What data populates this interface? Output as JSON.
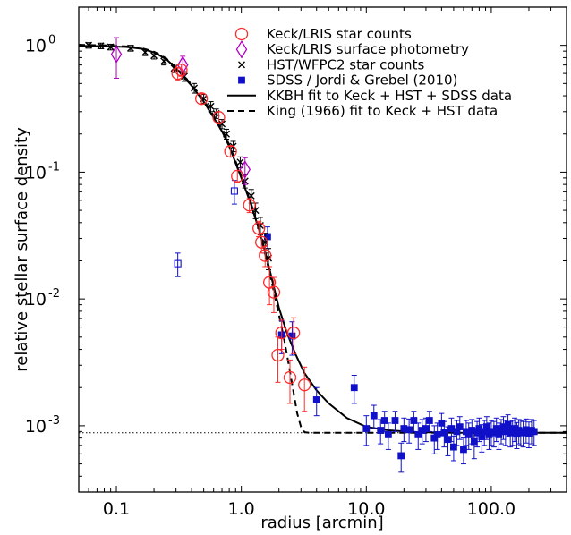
{
  "chart_data": {
    "type": "scatter",
    "xlabel": "radius [arcmin]",
    "ylabel": "relative stellar surface density",
    "xscale": "log",
    "yscale": "log",
    "xlim": [
      0.05,
      400
    ],
    "ylim": [
      0.0003,
      2.0
    ],
    "x_tick_labels": [
      {
        "value": 0.1,
        "label": "0.1"
      },
      {
        "value": 1,
        "label": "1.0"
      },
      {
        "value": 10,
        "label": "10.0"
      },
      {
        "value": 100,
        "label": "100.0"
      }
    ],
    "y_tick_labels": [
      {
        "value": 1,
        "base": "10",
        "exp": "0"
      },
      {
        "value": 0.1,
        "base": "10",
        "exp": "-1"
      },
      {
        "value": 0.01,
        "base": "10",
        "exp": "-2"
      },
      {
        "value": 0.001,
        "base": "10",
        "exp": "-3"
      }
    ],
    "background_level": 0.00088,
    "legend_position": "top-right",
    "colors": {
      "keck_counts": "#ff2a2a",
      "keck_phot": "#b000c0",
      "hst": "#000000",
      "sdss": "#1010c8"
    },
    "series": [
      {
        "name": "Keck/LRIS star counts",
        "marker": "open-circle",
        "points": [
          [
            0.31,
            0.6,
            0.07
          ],
          [
            0.33,
            0.64,
            0.07
          ],
          [
            0.48,
            0.38,
            0.035
          ],
          [
            0.66,
            0.27,
            0.03
          ],
          [
            0.82,
            0.146,
            0.014
          ],
          [
            0.93,
            0.093,
            0.01
          ],
          [
            1.16,
            0.055,
            0.007
          ],
          [
            1.38,
            0.036,
            0.005
          ],
          [
            1.45,
            0.028,
            0.005
          ],
          [
            1.55,
            0.022,
            0.004
          ],
          [
            1.68,
            0.0135,
            0.0045
          ],
          [
            1.82,
            0.0113,
            0.0035
          ],
          [
            1.96,
            0.0036,
            0.0014
          ],
          [
            2.1,
            0.0054,
            0.0014
          ],
          [
            2.45,
            0.0024,
            0.0009
          ],
          [
            2.62,
            0.0054,
            0.0017
          ],
          [
            3.2,
            0.0021,
            0.0008
          ]
        ]
      },
      {
        "name": "Keck/LRIS surface photometry",
        "marker": "open-diamond",
        "points": [
          [
            0.1,
            0.85,
            0.3
          ],
          [
            0.34,
            0.7,
            0.12
          ],
          [
            1.07,
            0.105,
            0.025
          ]
        ]
      },
      {
        "name": "HST/WFPC2 star counts",
        "marker": "x",
        "points": [
          [
            0.06,
            1.0,
            0.05
          ],
          [
            0.075,
            0.99,
            0.05
          ],
          [
            0.09,
            0.97,
            0.05
          ],
          [
            0.13,
            0.95,
            0.05
          ],
          [
            0.17,
            0.88,
            0.05
          ],
          [
            0.2,
            0.83,
            0.05
          ],
          [
            0.24,
            0.75,
            0.05
          ],
          [
            0.29,
            0.66,
            0.05
          ],
          [
            0.35,
            0.57,
            0.05
          ],
          [
            0.42,
            0.46,
            0.04
          ],
          [
            0.5,
            0.38,
            0.03
          ],
          [
            0.57,
            0.33,
            0.03
          ],
          [
            0.63,
            0.29,
            0.025
          ],
          [
            0.7,
            0.24,
            0.02
          ],
          [
            0.76,
            0.2,
            0.018
          ],
          [
            0.86,
            0.16,
            0.015
          ],
          [
            0.98,
            0.12,
            0.012
          ],
          [
            1.07,
            0.085,
            0.01
          ],
          [
            1.2,
            0.065,
            0.008
          ],
          [
            1.3,
            0.05,
            0.007
          ],
          [
            1.42,
            0.038,
            0.006
          ],
          [
            1.55,
            0.028,
            0.005
          ],
          [
            1.65,
            0.021,
            0.004
          ]
        ]
      },
      {
        "name": "SDSS / Jordi & Grebel (2010)",
        "marker": "filled-square",
        "points": [
          [
            0.31,
            0.019,
            0.004
          ],
          [
            0.88,
            0.071,
            0.015
          ],
          [
            1.62,
            0.031,
            0.006
          ],
          [
            2.1,
            0.0052,
            0.0015
          ],
          [
            2.55,
            0.0051,
            0.0015
          ],
          [
            4.0,
            0.0016,
            0.0004
          ],
          [
            8.0,
            0.002,
            0.0005
          ],
          [
            10.0,
            0.00095,
            0.00025
          ],
          [
            11.5,
            0.0012,
            0.00025
          ],
          [
            13,
            0.00092,
            0.0002
          ],
          [
            14,
            0.0011,
            0.0002
          ],
          [
            15,
            0.00085,
            0.0002
          ],
          [
            17,
            0.0011,
            0.0002
          ],
          [
            19,
            0.00058,
            0.00015
          ],
          [
            20,
            0.00095,
            0.0002
          ],
          [
            22,
            0.00093,
            0.0002
          ],
          [
            24,
            0.0011,
            0.0002
          ],
          [
            26,
            0.00085,
            0.0002
          ],
          [
            28,
            0.00092,
            0.0002
          ],
          [
            30,
            0.00095,
            0.0002
          ],
          [
            32,
            0.0011,
            0.0002
          ],
          [
            35,
            0.0008,
            0.0002
          ],
          [
            37,
            0.00085,
            0.0002
          ],
          [
            40,
            0.00105,
            0.0002
          ],
          [
            42,
            0.00088,
            0.0002
          ],
          [
            45,
            0.00078,
            0.0002
          ],
          [
            48,
            0.00095,
            0.0002
          ],
          [
            50,
            0.00068,
            0.00015
          ],
          [
            53,
            0.0009,
            0.0002
          ],
          [
            56,
            0.00098,
            0.0002
          ],
          [
            60,
            0.00065,
            0.00015
          ],
          [
            63,
            0.0009,
            0.0002
          ],
          [
            66,
            0.00085,
            0.0002
          ],
          [
            70,
            0.00092,
            0.0002
          ],
          [
            73,
            0.00075,
            0.0002
          ],
          [
            77,
            0.00088,
            0.0002
          ],
          [
            80,
            0.00095,
            0.0002
          ],
          [
            84,
            0.00082,
            0.0002
          ],
          [
            88,
            0.0009,
            0.0002
          ],
          [
            92,
            0.00098,
            0.0002
          ],
          [
            96,
            0.00085,
            0.0002
          ],
          [
            100,
            0.0009,
            0.0002
          ],
          [
            105,
            0.00088,
            0.0002
          ],
          [
            110,
            0.00095,
            0.0002
          ],
          [
            115,
            0.00085,
            0.0002
          ],
          [
            120,
            0.00092,
            0.0002
          ],
          [
            125,
            0.00098,
            0.0002
          ],
          [
            130,
            0.0009,
            0.0002
          ],
          [
            136,
            0.00102,
            0.0002
          ],
          [
            142,
            0.00088,
            0.0002
          ],
          [
            148,
            0.0009,
            0.0002
          ],
          [
            154,
            0.00095,
            0.0002
          ],
          [
            160,
            0.00086,
            0.0002
          ],
          [
            166,
            0.00092,
            0.0002
          ],
          [
            172,
            0.0009,
            0.0002
          ],
          [
            180,
            0.00088,
            0.0002
          ],
          [
            190,
            0.00093,
            0.0002
          ],
          [
            200,
            0.00087,
            0.0002
          ],
          [
            210,
            0.00092,
            0.0002
          ],
          [
            220,
            0.0009,
            0.0002
          ]
        ]
      }
    ],
    "fits": [
      {
        "name": "KKBH fit to Keck + HST + SDSS data",
        "style": "solid",
        "points": [
          [
            0.05,
            0.99
          ],
          [
            0.08,
            0.985
          ],
          [
            0.12,
            0.97
          ],
          [
            0.16,
            0.94
          ],
          [
            0.2,
            0.88
          ],
          [
            0.25,
            0.78
          ],
          [
            0.3,
            0.66
          ],
          [
            0.4,
            0.48
          ],
          [
            0.5,
            0.36
          ],
          [
            0.6,
            0.27
          ],
          [
            0.7,
            0.21
          ],
          [
            0.8,
            0.16
          ],
          [
            1.0,
            0.09
          ],
          [
            1.2,
            0.055
          ],
          [
            1.4,
            0.034
          ],
          [
            1.6,
            0.021
          ],
          [
            1.8,
            0.013
          ],
          [
            2.0,
            0.0085
          ],
          [
            2.3,
            0.0055
          ],
          [
            2.7,
            0.0037
          ],
          [
            3.2,
            0.0026
          ],
          [
            4.0,
            0.0019
          ],
          [
            5.0,
            0.0015
          ],
          [
            7.0,
            0.00115
          ],
          [
            10,
            0.00098
          ],
          [
            15,
            0.00092
          ],
          [
            25,
            0.00089
          ],
          [
            50,
            0.00088
          ],
          [
            400,
            0.00088
          ]
        ]
      },
      {
        "name": "King (1966) fit to Keck + HST data",
        "style": "dashed",
        "points": [
          [
            0.05,
            1.01
          ],
          [
            0.08,
            1.0
          ],
          [
            0.12,
            0.98
          ],
          [
            0.16,
            0.95
          ],
          [
            0.2,
            0.89
          ],
          [
            0.25,
            0.79
          ],
          [
            0.3,
            0.67
          ],
          [
            0.4,
            0.49
          ],
          [
            0.5,
            0.37
          ],
          [
            0.6,
            0.28
          ],
          [
            0.7,
            0.215
          ],
          [
            0.8,
            0.165
          ],
          [
            1.0,
            0.093
          ],
          [
            1.2,
            0.056
          ],
          [
            1.4,
            0.034
          ],
          [
            1.6,
            0.02
          ],
          [
            1.8,
            0.012
          ],
          [
            2.0,
            0.0075
          ],
          [
            2.2,
            0.0048
          ],
          [
            2.4,
            0.003
          ],
          [
            2.6,
            0.0019
          ],
          [
            2.8,
            0.00125
          ],
          [
            3.0,
            0.00098
          ],
          [
            3.2,
            0.00089
          ],
          [
            3.5,
            0.00088
          ],
          [
            400,
            0.00088
          ]
        ]
      }
    ]
  }
}
